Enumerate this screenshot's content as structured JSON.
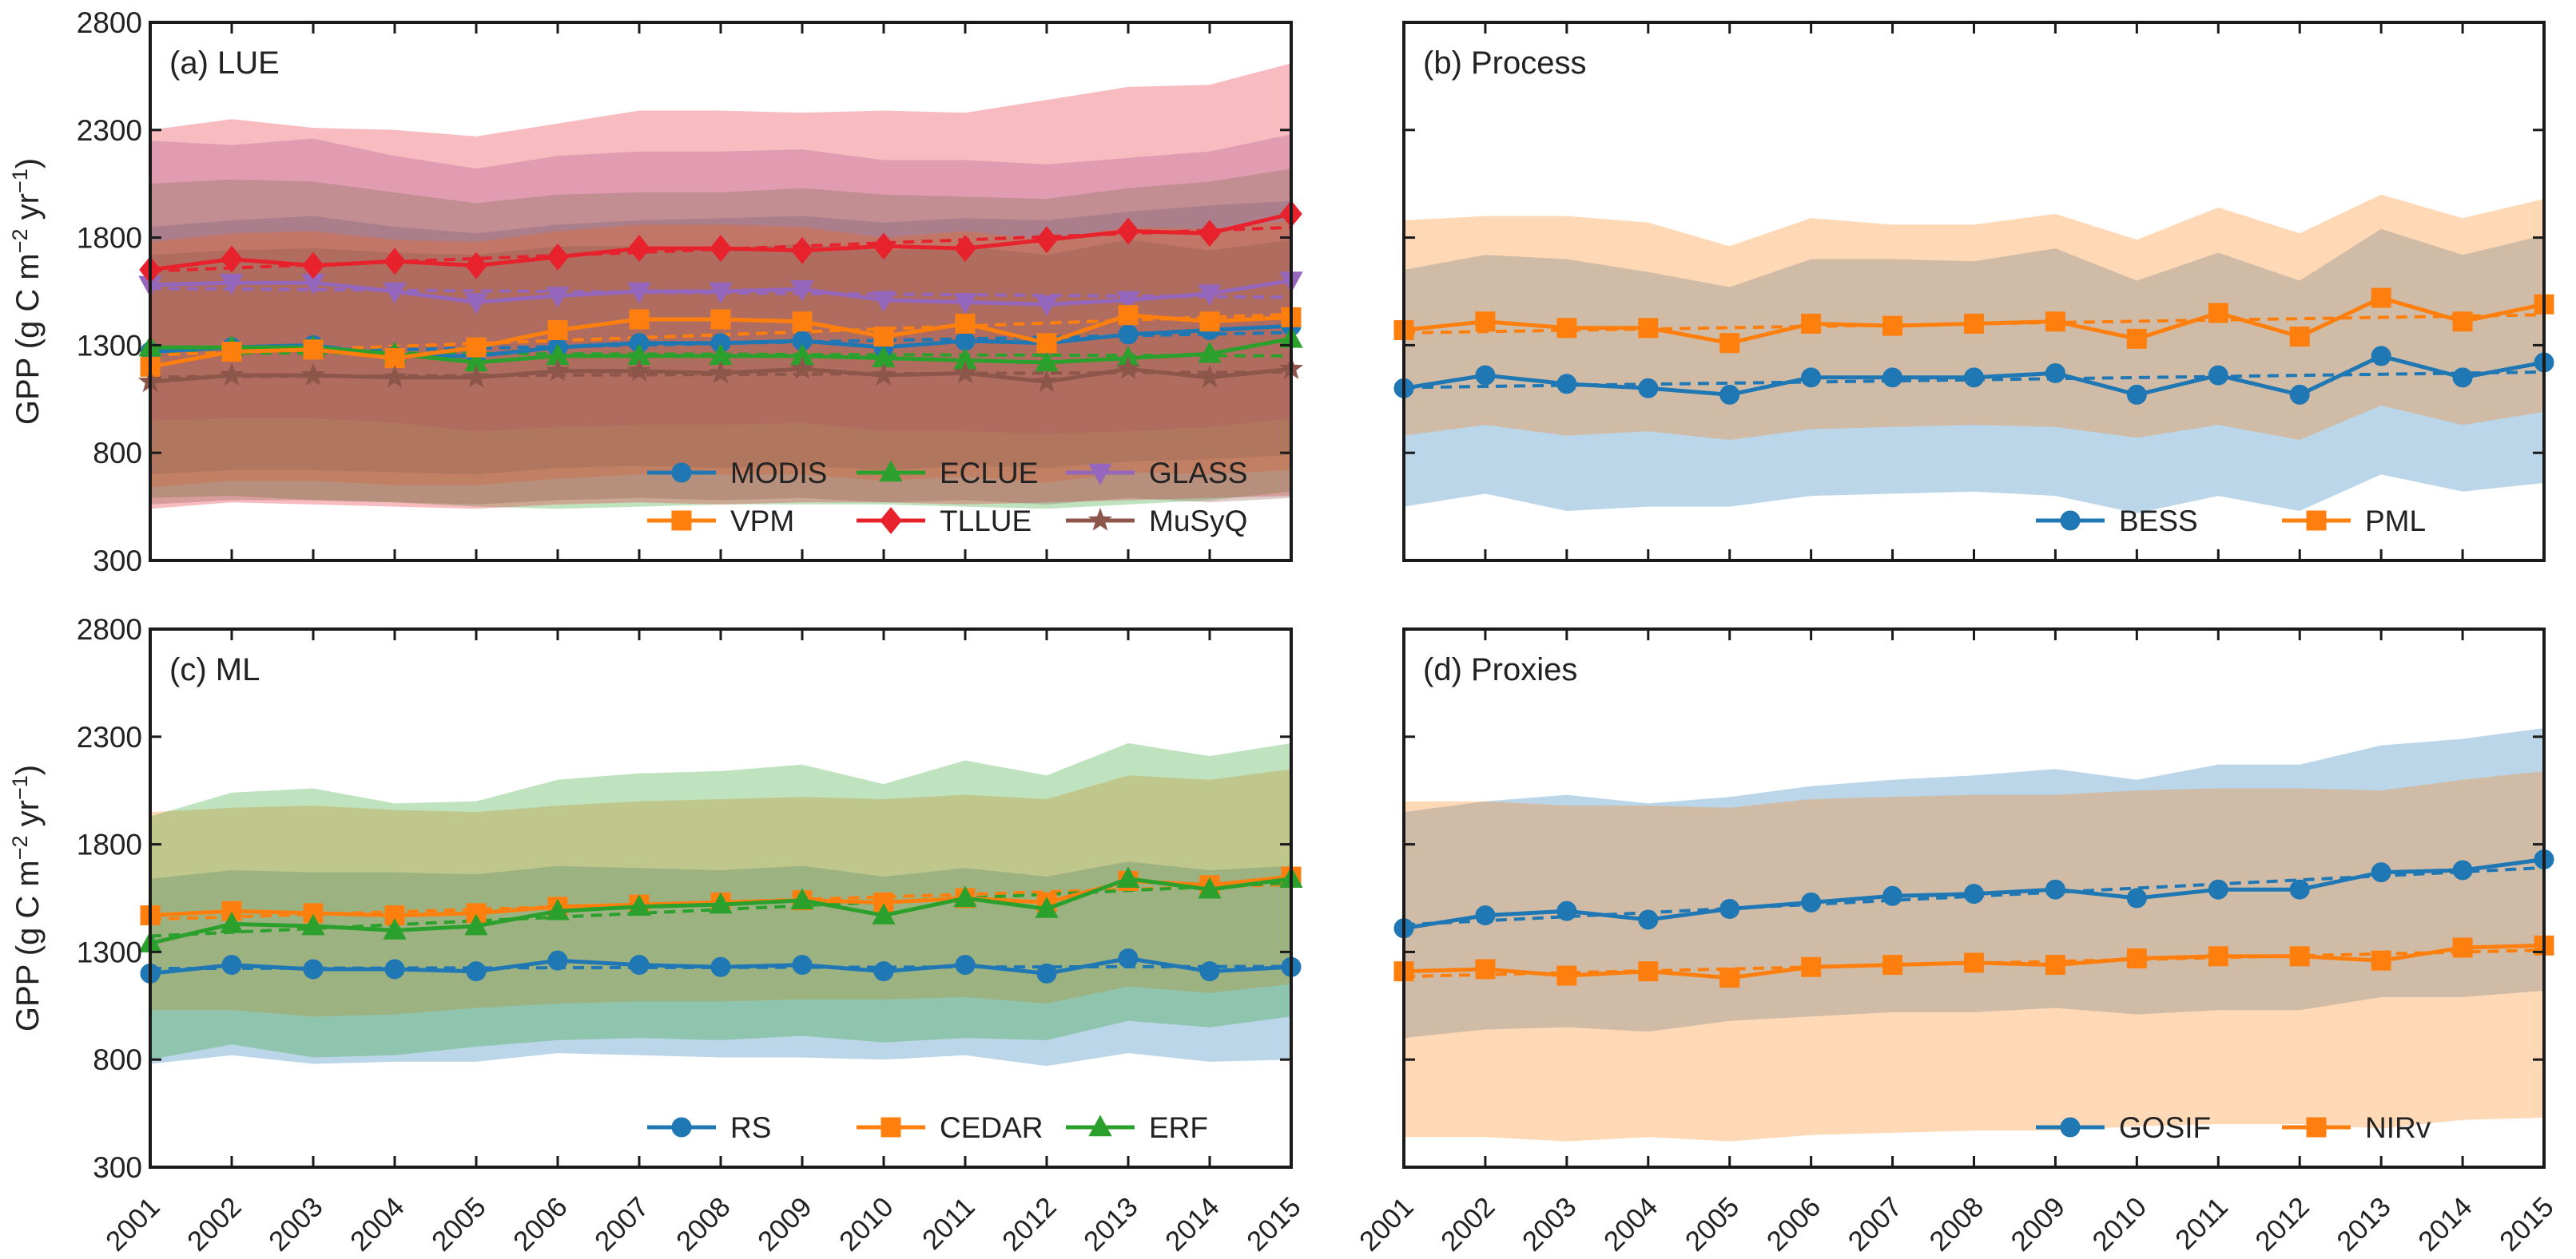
{
  "chart_data": [
    {
      "type": "line",
      "panel": "(a) LUE",
      "x": [
        "2001",
        "2002",
        "2003",
        "2004",
        "2005",
        "2006",
        "2007",
        "2008",
        "2009",
        "2010",
        "2011",
        "2012",
        "2013",
        "2014",
        "2015"
      ],
      "ylim": [
        300,
        2800
      ],
      "yticks": [
        300,
        800,
        1300,
        1800,
        2300,
        2800
      ],
      "ylabel": "GPP (g C m",
      "ylabel_sup1": "−2",
      "ylabel_mid": " yr",
      "ylabel_sup2": "−1",
      "ylabel_end": ")",
      "legend_position": "bottom-right",
      "legend_columns": 3,
      "series": [
        {
          "name": "MODIS",
          "color": "#1f77b4",
          "marker": "circle",
          "values": [
            1270,
            1290,
            1300,
            1250,
            1250,
            1290,
            1310,
            1310,
            1320,
            1290,
            1320,
            1310,
            1350,
            1370,
            1390
          ],
          "band_low": [
            700,
            720,
            720,
            710,
            700,
            730,
            740,
            730,
            740,
            720,
            740,
            730,
            760,
            770,
            790
          ],
          "band_high": [
            1850,
            1880,
            1900,
            1850,
            1820,
            1860,
            1880,
            1890,
            1900,
            1870,
            1890,
            1880,
            1920,
            1950,
            1970
          ]
        },
        {
          "name": "ECLUE",
          "color": "#2ca02c",
          "marker": "triangle",
          "values": [
            1290,
            1290,
            1290,
            1260,
            1220,
            1250,
            1250,
            1250,
            1250,
            1240,
            1230,
            1220,
            1240,
            1260,
            1330
          ],
          "band_low": [
            590,
            600,
            580,
            570,
            550,
            540,
            550,
            560,
            560,
            560,
            550,
            540,
            560,
            580,
            620
          ],
          "band_high": [
            2050,
            2070,
            2060,
            2010,
            1960,
            2000,
            2010,
            2010,
            2030,
            2000,
            1990,
            1980,
            2030,
            2060,
            2120
          ]
        },
        {
          "name": "GLASS",
          "color": "#9467bd",
          "marker": "triangle-down",
          "values": [
            1580,
            1590,
            1590,
            1550,
            1500,
            1530,
            1550,
            1550,
            1560,
            1510,
            1500,
            1490,
            1510,
            1540,
            1600
          ],
          "band_low": [
            950,
            960,
            960,
            940,
            900,
            920,
            930,
            930,
            940,
            900,
            900,
            890,
            900,
            920,
            960
          ],
          "band_high": [
            2250,
            2230,
            2260,
            2180,
            2120,
            2180,
            2200,
            2200,
            2210,
            2160,
            2160,
            2140,
            2170,
            2200,
            2280
          ]
        },
        {
          "name": "VPM",
          "color": "#ff7f0e",
          "marker": "square",
          "values": [
            1200,
            1270,
            1280,
            1240,
            1290,
            1370,
            1420,
            1420,
            1410,
            1340,
            1400,
            1310,
            1440,
            1410,
            1430
          ],
          "band_low": [
            640,
            670,
            670,
            650,
            650,
            680,
            700,
            700,
            700,
            670,
            690,
            660,
            710,
            700,
            720
          ],
          "band_high": [
            1780,
            1820,
            1830,
            1790,
            1780,
            1830,
            1860,
            1860,
            1850,
            1800,
            1830,
            1790,
            1850,
            1840,
            1880
          ]
        },
        {
          "name": "TLLUE",
          "color": "#e8222d",
          "marker": "diamond",
          "values": [
            1650,
            1700,
            1670,
            1690,
            1670,
            1710,
            1750,
            1750,
            1740,
            1760,
            1750,
            1790,
            1830,
            1820,
            1910
          ],
          "band_low": [
            540,
            570,
            560,
            550,
            540,
            560,
            570,
            560,
            570,
            570,
            560,
            570,
            580,
            590,
            600
          ],
          "band_high": [
            2300,
            2350,
            2310,
            2300,
            2270,
            2330,
            2390,
            2390,
            2380,
            2390,
            2380,
            2440,
            2500,
            2510,
            2610
          ]
        },
        {
          "name": "MuSyQ",
          "color": "#8c564b",
          "marker": "star",
          "values": [
            1130,
            1160,
            1160,
            1150,
            1150,
            1180,
            1180,
            1170,
            1190,
            1160,
            1170,
            1130,
            1190,
            1150,
            1190
          ],
          "band_low": [
            560,
            580,
            580,
            570,
            560,
            580,
            590,
            580,
            590,
            570,
            580,
            560,
            590,
            570,
            590
          ],
          "band_high": [
            1720,
            1740,
            1750,
            1730,
            1720,
            1760,
            1760,
            1750,
            1770,
            1740,
            1760,
            1720,
            1790,
            1740,
            1790
          ]
        }
      ]
    },
    {
      "type": "line",
      "panel": "(b) Process",
      "x": [
        "2001",
        "2002",
        "2003",
        "2004",
        "2005",
        "2006",
        "2007",
        "2008",
        "2009",
        "2010",
        "2011",
        "2012",
        "2013",
        "2014",
        "2015"
      ],
      "ylim": [
        300,
        2800
      ],
      "legend_position": "bottom-right",
      "legend_columns": 2,
      "series": [
        {
          "name": "BESS",
          "color": "#1f77b4",
          "marker": "circle",
          "values": [
            1100,
            1160,
            1120,
            1100,
            1070,
            1150,
            1150,
            1150,
            1170,
            1070,
            1160,
            1070,
            1250,
            1150,
            1220
          ],
          "band_low": [
            550,
            610,
            530,
            550,
            550,
            600,
            610,
            620,
            600,
            520,
            600,
            530,
            700,
            620,
            660
          ],
          "band_high": [
            1650,
            1720,
            1700,
            1640,
            1570,
            1700,
            1700,
            1690,
            1750,
            1600,
            1730,
            1600,
            1840,
            1720,
            1810
          ]
        },
        {
          "name": "PML",
          "color": "#ff7f0e",
          "marker": "square",
          "values": [
            1370,
            1410,
            1380,
            1380,
            1310,
            1400,
            1390,
            1400,
            1410,
            1330,
            1450,
            1340,
            1520,
            1410,
            1490
          ],
          "band_low": [
            880,
            930,
            880,
            900,
            860,
            910,
            920,
            930,
            920,
            870,
            930,
            860,
            1020,
            930,
            990
          ],
          "band_high": [
            1880,
            1900,
            1900,
            1870,
            1760,
            1890,
            1860,
            1860,
            1910,
            1790,
            1940,
            1820,
            2000,
            1890,
            1980
          ]
        }
      ]
    },
    {
      "type": "line",
      "panel": "(c) ML",
      "x": [
        "2001",
        "2002",
        "2003",
        "2004",
        "2005",
        "2006",
        "2007",
        "2008",
        "2009",
        "2010",
        "2011",
        "2012",
        "2013",
        "2014",
        "2015"
      ],
      "ylim": [
        300,
        2800
      ],
      "yticks": [
        300,
        800,
        1300,
        1800,
        2300,
        2800
      ],
      "legend_position": "bottom-right",
      "legend_columns": 3,
      "series": [
        {
          "name": "RS",
          "color": "#1f77b4",
          "marker": "circle",
          "values": [
            1200,
            1240,
            1220,
            1220,
            1210,
            1260,
            1240,
            1230,
            1240,
            1210,
            1240,
            1200,
            1270,
            1210,
            1230
          ],
          "band_low": [
            780,
            820,
            780,
            790,
            790,
            830,
            820,
            810,
            810,
            800,
            820,
            770,
            830,
            790,
            800
          ],
          "band_high": [
            1640,
            1680,
            1670,
            1670,
            1660,
            1700,
            1690,
            1680,
            1700,
            1650,
            1690,
            1650,
            1720,
            1680,
            1700
          ]
        },
        {
          "name": "CEDAR",
          "color": "#ff7f0e",
          "marker": "square",
          "values": [
            1470,
            1490,
            1480,
            1470,
            1480,
            1510,
            1520,
            1530,
            1540,
            1530,
            1550,
            1530,
            1630,
            1610,
            1650
          ],
          "band_low": [
            1030,
            1030,
            1000,
            1010,
            1040,
            1060,
            1070,
            1070,
            1080,
            1080,
            1090,
            1060,
            1140,
            1110,
            1150
          ],
          "band_high": [
            1950,
            1970,
            1980,
            1960,
            1950,
            1980,
            2000,
            2010,
            2020,
            2010,
            2030,
            2010,
            2120,
            2100,
            2150
          ]
        },
        {
          "name": "ERF",
          "color": "#2ca02c",
          "marker": "triangle",
          "values": [
            1340,
            1430,
            1420,
            1400,
            1420,
            1490,
            1510,
            1520,
            1540,
            1470,
            1550,
            1500,
            1640,
            1590,
            1640
          ],
          "band_low": [
            800,
            870,
            810,
            820,
            860,
            890,
            900,
            890,
            910,
            880,
            900,
            890,
            980,
            950,
            1000
          ],
          "band_high": [
            1930,
            2040,
            2060,
            1990,
            2000,
            2100,
            2130,
            2140,
            2170,
            2080,
            2190,
            2120,
            2270,
            2210,
            2270
          ]
        }
      ]
    },
    {
      "type": "line",
      "panel": "(d) Proxies",
      "x": [
        "2001",
        "2002",
        "2003",
        "2004",
        "2005",
        "2006",
        "2007",
        "2008",
        "2009",
        "2010",
        "2011",
        "2012",
        "2013",
        "2014",
        "2015"
      ],
      "ylim": [
        300,
        2800
      ],
      "legend_position": "bottom-right",
      "legend_columns": 2,
      "series": [
        {
          "name": "GOSIF",
          "color": "#1f77b4",
          "marker": "circle",
          "values": [
            1410,
            1470,
            1490,
            1450,
            1500,
            1530,
            1560,
            1570,
            1590,
            1550,
            1590,
            1590,
            1670,
            1680,
            1730
          ],
          "band_low": [
            900,
            940,
            950,
            930,
            980,
            1000,
            1020,
            1020,
            1040,
            1010,
            1030,
            1030,
            1090,
            1090,
            1120
          ],
          "band_high": [
            1950,
            2000,
            2030,
            1990,
            2020,
            2070,
            2100,
            2120,
            2150,
            2100,
            2170,
            2170,
            2260,
            2290,
            2340
          ]
        },
        {
          "name": "NIRv",
          "color": "#ff7f0e",
          "marker": "square",
          "values": [
            1210,
            1220,
            1190,
            1210,
            1180,
            1230,
            1240,
            1250,
            1240,
            1270,
            1280,
            1280,
            1260,
            1320,
            1330
          ],
          "band_low": [
            440,
            440,
            420,
            440,
            420,
            450,
            460,
            470,
            470,
            490,
            500,
            500,
            480,
            520,
            530
          ],
          "band_high": [
            2000,
            2000,
            1980,
            1980,
            1970,
            2010,
            2020,
            2030,
            2030,
            2050,
            2060,
            2060,
            2050,
            2100,
            2140
          ]
        }
      ]
    }
  ]
}
